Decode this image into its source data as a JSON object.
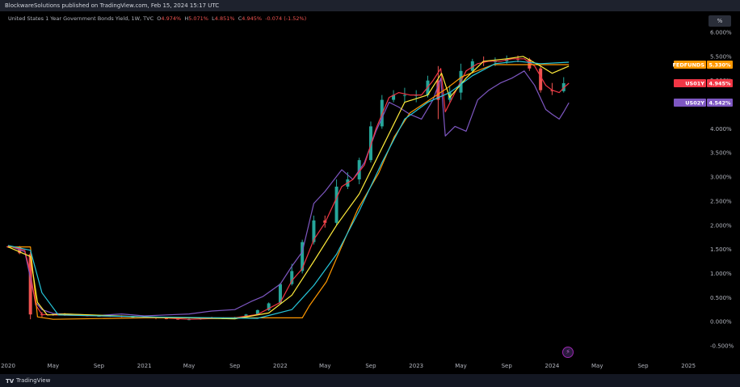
{
  "header": {
    "publisher": "BlockwareSolutions published on TradingView.com, Feb 15, 2024 15:17 UTC"
  },
  "legend": {
    "symbol": "United States 1 Year Government Bonds Yield, 1W, TVC",
    "o_label": "O",
    "o_value": "4.974%",
    "h_label": "H",
    "h_value": "5.071%",
    "l_label": "L",
    "l_value": "4.851%",
    "c_label": "C",
    "c_value": "4.945%",
    "change": "-0.074 (-1.52%)"
  },
  "toolbar": {
    "percent_button": "%"
  },
  "footer": {
    "brand": "TradingView"
  },
  "colors": {
    "background": "#000000",
    "up": "#26a69a",
    "down": "#ef5350",
    "us01y": "#f23645",
    "us02y": "#7e57c2",
    "fedfunds": "#ff9800",
    "yellow_ma": "#ffeb3b",
    "cyan_ma": "#26c6da"
  },
  "chart_data": {
    "type": "line",
    "yaxis": {
      "ylim": [
        -0.5,
        6.0
      ],
      "ticks": [
        "6.000%",
        "5.500%",
        "5.000%",
        "4.500%",
        "4.000%",
        "3.500%",
        "3.000%",
        "2.500%",
        "2.000%",
        "1.500%",
        "1.000%",
        "0.500%",
        "0.000%",
        "-0.500%"
      ]
    },
    "xaxis": {
      "range": [
        "2020-01-01",
        "2025-01-31"
      ],
      "ticks": [
        {
          "label": "2020",
          "date": "2020-01-01"
        },
        {
          "label": "May",
          "date": "2020-05-01"
        },
        {
          "label": "Sep",
          "date": "2020-09-01"
        },
        {
          "label": "2021",
          "date": "2021-01-01"
        },
        {
          "label": "May",
          "date": "2021-05-01"
        },
        {
          "label": "Sep",
          "date": "2021-09-01"
        },
        {
          "label": "2022",
          "date": "2022-01-01"
        },
        {
          "label": "May",
          "date": "2022-05-01"
        },
        {
          "label": "Sep",
          "date": "2022-09-01"
        },
        {
          "label": "2023",
          "date": "2023-01-01"
        },
        {
          "label": "May",
          "date": "2023-05-01"
        },
        {
          "label": "Sep",
          "date": "2023-09-01"
        },
        {
          "label": "2024",
          "date": "2024-01-01"
        },
        {
          "label": "May",
          "date": "2024-05-01"
        },
        {
          "label": "Sep",
          "date": "2024-09-01"
        },
        {
          "label": "2025",
          "date": "2025-01-01"
        }
      ]
    },
    "badges": [
      {
        "name": "FEDFUNDS",
        "value": "5.330%",
        "color": "#ff9800",
        "y": 5.33
      },
      {
        "name": "US01Y",
        "value": "4.945%",
        "color": "#f23645",
        "y": 4.945
      },
      {
        "name": "US02Y",
        "value": "4.542%",
        "color": "#7e57c2",
        "y": 4.542
      }
    ],
    "series": [
      {
        "name": "US02Y",
        "color": "#7e57c2",
        "points": [
          [
            "2020-01-01",
            1.58
          ],
          [
            "2020-02-15",
            1.45
          ],
          [
            "2020-03-01",
            0.9
          ],
          [
            "2020-03-15",
            0.4
          ],
          [
            "2020-04-01",
            0.25
          ],
          [
            "2020-05-01",
            0.17
          ],
          [
            "2020-07-01",
            0.15
          ],
          [
            "2020-09-01",
            0.13
          ],
          [
            "2020-11-01",
            0.16
          ],
          [
            "2021-01-01",
            0.12
          ],
          [
            "2021-03-01",
            0.14
          ],
          [
            "2021-05-01",
            0.16
          ],
          [
            "2021-07-01",
            0.22
          ],
          [
            "2021-09-01",
            0.25
          ],
          [
            "2021-10-15",
            0.42
          ],
          [
            "2021-11-15",
            0.52
          ],
          [
            "2022-01-01",
            0.78
          ],
          [
            "2022-02-01",
            1.15
          ],
          [
            "2022-03-01",
            1.45
          ],
          [
            "2022-04-01",
            2.45
          ],
          [
            "2022-05-01",
            2.7
          ],
          [
            "2022-06-15",
            3.15
          ],
          [
            "2022-07-15",
            2.95
          ],
          [
            "2022-08-15",
            3.3
          ],
          [
            "2022-09-15",
            3.95
          ],
          [
            "2022-10-20",
            4.55
          ],
          [
            "2022-11-15",
            4.45
          ],
          [
            "2022-12-15",
            4.3
          ],
          [
            "2023-01-15",
            4.2
          ],
          [
            "2023-02-15",
            4.6
          ],
          [
            "2023-03-08",
            5.05
          ],
          [
            "2023-03-20",
            3.85
          ],
          [
            "2023-04-15",
            4.05
          ],
          [
            "2023-05-15",
            3.95
          ],
          [
            "2023-06-15",
            4.6
          ],
          [
            "2023-07-15",
            4.8
          ],
          [
            "2023-08-15",
            4.95
          ],
          [
            "2023-09-15",
            5.05
          ],
          [
            "2023-10-18",
            5.2
          ],
          [
            "2023-11-15",
            4.9
          ],
          [
            "2023-12-15",
            4.4
          ],
          [
            "2024-01-01",
            4.3
          ],
          [
            "2024-01-20",
            4.2
          ],
          [
            "2024-02-01",
            4.35
          ],
          [
            "2024-02-15",
            4.54
          ]
        ]
      },
      {
        "name": "US01Y",
        "color": "#f23645",
        "points": [
          [
            "2020-01-01",
            1.57
          ],
          [
            "2020-02-15",
            1.48
          ],
          [
            "2020-03-01",
            1.0
          ],
          [
            "2020-03-15",
            0.35
          ],
          [
            "2020-04-01",
            0.15
          ],
          [
            "2020-05-01",
            0.14
          ],
          [
            "2020-07-01",
            0.13
          ],
          [
            "2020-09-01",
            0.12
          ],
          [
            "2020-11-01",
            0.11
          ],
          [
            "2021-01-01",
            0.1
          ],
          [
            "2021-05-01",
            0.05
          ],
          [
            "2021-09-01",
            0.08
          ],
          [
            "2021-11-01",
            0.15
          ],
          [
            "2022-01-01",
            0.4
          ],
          [
            "2022-02-01",
            0.85
          ],
          [
            "2022-03-01",
            1.1
          ],
          [
            "2022-04-01",
            1.7
          ],
          [
            "2022-05-01",
            2.05
          ],
          [
            "2022-06-15",
            2.8
          ],
          [
            "2022-07-15",
            2.95
          ],
          [
            "2022-08-15",
            3.25
          ],
          [
            "2022-09-15",
            4.0
          ],
          [
            "2022-10-20",
            4.65
          ],
          [
            "2022-11-15",
            4.75
          ],
          [
            "2022-12-15",
            4.7
          ],
          [
            "2023-01-15",
            4.7
          ],
          [
            "2023-02-15",
            5.0
          ],
          [
            "2023-03-08",
            5.25
          ],
          [
            "2023-03-20",
            4.35
          ],
          [
            "2023-04-15",
            4.75
          ],
          [
            "2023-05-15",
            5.2
          ],
          [
            "2023-06-15",
            5.35
          ],
          [
            "2023-07-15",
            5.4
          ],
          [
            "2023-08-15",
            5.4
          ],
          [
            "2023-09-15",
            5.45
          ],
          [
            "2023-10-18",
            5.45
          ],
          [
            "2023-11-15",
            5.3
          ],
          [
            "2023-12-15",
            4.9
          ],
          [
            "2024-01-01",
            4.8
          ],
          [
            "2024-01-20",
            4.75
          ],
          [
            "2024-02-01",
            4.85
          ],
          [
            "2024-02-15",
            4.945
          ]
        ]
      },
      {
        "name": "FEDFUNDS",
        "color": "#ff9800",
        "points": [
          [
            "2020-01-01",
            1.55
          ],
          [
            "2020-03-01",
            1.55
          ],
          [
            "2020-03-08",
            1.0
          ],
          [
            "2020-03-20",
            0.1
          ],
          [
            "2020-05-01",
            0.05
          ],
          [
            "2021-01-01",
            0.08
          ],
          [
            "2021-09-01",
            0.08
          ],
          [
            "2022-03-01",
            0.08
          ],
          [
            "2022-03-20",
            0.33
          ],
          [
            "2022-05-05",
            0.83
          ],
          [
            "2022-06-16",
            1.58
          ],
          [
            "2022-07-28",
            2.33
          ],
          [
            "2022-09-22",
            3.08
          ],
          [
            "2022-11-03",
            3.83
          ],
          [
            "2022-12-15",
            4.33
          ],
          [
            "2023-02-02",
            4.58
          ],
          [
            "2023-03-23",
            4.83
          ],
          [
            "2023-05-04",
            5.08
          ],
          [
            "2023-07-27",
            5.33
          ],
          [
            "2024-02-15",
            5.33
          ]
        ]
      },
      {
        "name": "MA fast",
        "color": "#ffeb3b",
        "points": [
          [
            "2020-01-01",
            1.55
          ],
          [
            "2020-03-01",
            1.35
          ],
          [
            "2020-03-20",
            0.4
          ],
          [
            "2020-04-15",
            0.14
          ],
          [
            "2020-06-01",
            0.16
          ],
          [
            "2021-01-01",
            0.1
          ],
          [
            "2021-09-01",
            0.06
          ],
          [
            "2021-12-01",
            0.18
          ],
          [
            "2022-02-01",
            0.55
          ],
          [
            "2022-04-01",
            1.25
          ],
          [
            "2022-06-01",
            2.0
          ],
          [
            "2022-08-01",
            2.65
          ],
          [
            "2022-10-01",
            3.6
          ],
          [
            "2022-12-01",
            4.55
          ],
          [
            "2023-02-01",
            4.7
          ],
          [
            "2023-03-10",
            5.15
          ],
          [
            "2023-04-01",
            4.65
          ],
          [
            "2023-05-15",
            5.05
          ],
          [
            "2023-07-01",
            5.4
          ],
          [
            "2023-09-01",
            5.45
          ],
          [
            "2023-10-15",
            5.5
          ],
          [
            "2023-12-01",
            5.3
          ],
          [
            "2024-01-01",
            5.15
          ],
          [
            "2024-02-15",
            5.3
          ]
        ]
      },
      {
        "name": "MA slow",
        "color": "#26c6da",
        "points": [
          [
            "2020-01-01",
            1.58
          ],
          [
            "2020-03-01",
            1.48
          ],
          [
            "2020-04-01",
            0.6
          ],
          [
            "2020-05-15",
            0.14
          ],
          [
            "2021-01-01",
            0.1
          ],
          [
            "2021-11-01",
            0.07
          ],
          [
            "2022-02-01",
            0.25
          ],
          [
            "2022-04-01",
            0.75
          ],
          [
            "2022-06-01",
            1.4
          ],
          [
            "2022-08-01",
            2.3
          ],
          [
            "2022-10-01",
            3.3
          ],
          [
            "2022-12-01",
            4.2
          ],
          [
            "2023-02-01",
            4.55
          ],
          [
            "2023-04-01",
            4.75
          ],
          [
            "2023-06-01",
            5.1
          ],
          [
            "2023-08-01",
            5.35
          ],
          [
            "2023-10-01",
            5.4
          ],
          [
            "2023-12-01",
            5.35
          ],
          [
            "2024-02-15",
            5.38
          ]
        ]
      }
    ],
    "candles_series": {
      "name": "US01Y weekly",
      "candles": [
        [
          "2020-01-01",
          1.56,
          1.58,
          1.53,
          1.55
        ],
        [
          "2020-02-01",
          1.55,
          1.57,
          1.4,
          1.42
        ],
        [
          "2020-03-01",
          1.4,
          1.45,
          0.05,
          0.15
        ],
        [
          "2020-04-01",
          0.15,
          0.2,
          0.08,
          0.14
        ],
        [
          "2020-05-01",
          0.14,
          0.17,
          0.12,
          0.15
        ],
        [
          "2020-06-01",
          0.15,
          0.18,
          0.12,
          0.14
        ],
        [
          "2020-07-01",
          0.14,
          0.16,
          0.12,
          0.13
        ],
        [
          "2020-08-01",
          0.13,
          0.15,
          0.11,
          0.12
        ],
        [
          "2020-09-01",
          0.12,
          0.14,
          0.11,
          0.12
        ],
        [
          "2020-10-01",
          0.12,
          0.14,
          0.1,
          0.12
        ],
        [
          "2020-11-01",
          0.12,
          0.13,
          0.09,
          0.1
        ],
        [
          "2020-12-01",
          0.1,
          0.12,
          0.08,
          0.1
        ],
        [
          "2021-01-01",
          0.1,
          0.12,
          0.08,
          0.09
        ],
        [
          "2021-02-01",
          0.09,
          0.1,
          0.05,
          0.07
        ],
        [
          "2021-03-01",
          0.07,
          0.09,
          0.05,
          0.06
        ],
        [
          "2021-04-01",
          0.06,
          0.08,
          0.04,
          0.05
        ],
        [
          "2021-05-01",
          0.05,
          0.07,
          0.03,
          0.05
        ],
        [
          "2021-06-01",
          0.05,
          0.09,
          0.04,
          0.08
        ],
        [
          "2021-07-01",
          0.08,
          0.1,
          0.06,
          0.07
        ],
        [
          "2021-08-01",
          0.07,
          0.09,
          0.06,
          0.07
        ],
        [
          "2021-09-01",
          0.07,
          0.1,
          0.06,
          0.09
        ],
        [
          "2021-10-01",
          0.09,
          0.16,
          0.08,
          0.15
        ],
        [
          "2021-11-01",
          0.15,
          0.25,
          0.14,
          0.24
        ],
        [
          "2021-12-01",
          0.24,
          0.4,
          0.22,
          0.38
        ],
        [
          "2022-01-01",
          0.38,
          0.8,
          0.36,
          0.78
        ],
        [
          "2022-02-01",
          0.78,
          1.2,
          0.75,
          1.05
        ],
        [
          "2022-03-01",
          1.05,
          1.7,
          1.0,
          1.65
        ],
        [
          "2022-04-01",
          1.65,
          2.2,
          1.6,
          2.1
        ],
        [
          "2022-05-01",
          2.1,
          2.2,
          1.95,
          2.05
        ],
        [
          "2022-06-01",
          2.05,
          2.95,
          2.0,
          2.8
        ],
        [
          "2022-07-01",
          2.8,
          3.1,
          2.75,
          2.95
        ],
        [
          "2022-08-01",
          2.95,
          3.4,
          2.85,
          3.35
        ],
        [
          "2022-09-01",
          3.35,
          4.15,
          3.3,
          4.05
        ],
        [
          "2022-10-01",
          4.05,
          4.7,
          4.0,
          4.6
        ],
        [
          "2022-11-01",
          4.6,
          4.8,
          4.55,
          4.7
        ],
        [
          "2022-12-01",
          4.7,
          4.85,
          4.55,
          4.7
        ],
        [
          "2023-01-01",
          4.7,
          4.8,
          4.55,
          4.7
        ],
        [
          "2023-02-01",
          4.7,
          5.1,
          4.65,
          5.0
        ],
        [
          "2023-03-01",
          5.0,
          5.3,
          4.2,
          4.6
        ],
        [
          "2023-04-01",
          4.6,
          4.9,
          4.55,
          4.75
        ],
        [
          "2023-05-01",
          4.75,
          5.35,
          4.6,
          5.2
        ],
        [
          "2023-06-01",
          5.2,
          5.45,
          5.15,
          5.4
        ],
        [
          "2023-07-01",
          5.4,
          5.5,
          5.3,
          5.38
        ],
        [
          "2023-08-01",
          5.38,
          5.48,
          5.3,
          5.4
        ],
        [
          "2023-09-01",
          5.4,
          5.52,
          5.35,
          5.45
        ],
        [
          "2023-10-01",
          5.45,
          5.52,
          5.38,
          5.44
        ],
        [
          "2023-11-01",
          5.44,
          5.47,
          5.2,
          5.25
        ],
        [
          "2023-12-01",
          5.25,
          5.3,
          4.75,
          4.8
        ],
        [
          "2024-01-01",
          4.8,
          4.95,
          4.7,
          4.78
        ],
        [
          "2024-02-01",
          4.78,
          5.07,
          4.75,
          4.945
        ]
      ]
    }
  }
}
